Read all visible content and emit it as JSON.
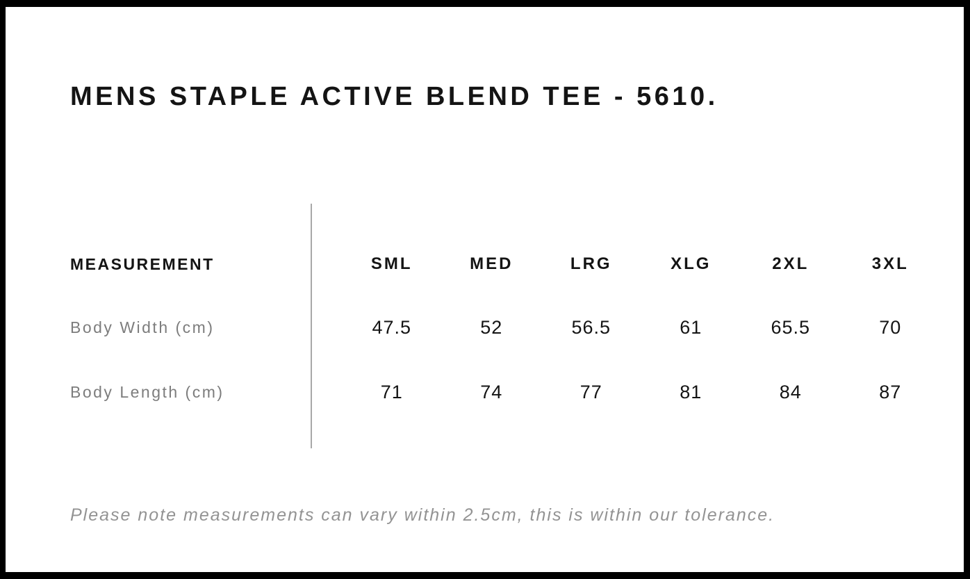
{
  "page": {
    "title": "MENS STAPLE ACTIVE BLEND TEE - 5610.",
    "note": "Please note measurements can vary within 2.5cm, this is within our tolerance."
  },
  "table": {
    "measurement_header": "MEASUREMENT",
    "size_headers": [
      "SML",
      "MED",
      "LRG",
      "XLG",
      "2XL",
      "3XL"
    ],
    "rows": [
      {
        "label": "Body Width (cm)",
        "values": [
          "47.5",
          "52",
          "56.5",
          "61",
          "65.5",
          "70"
        ]
      },
      {
        "label": "Body Length (cm)",
        "values": [
          "71",
          "74",
          "77",
          "81",
          "84",
          "87"
        ]
      }
    ]
  },
  "colors": {
    "frame": "#000000",
    "text_primary": "#141414",
    "row_label_gray": "#7d7d7d",
    "note_gray": "#939393",
    "divider_gray": "#a8a8a8"
  }
}
